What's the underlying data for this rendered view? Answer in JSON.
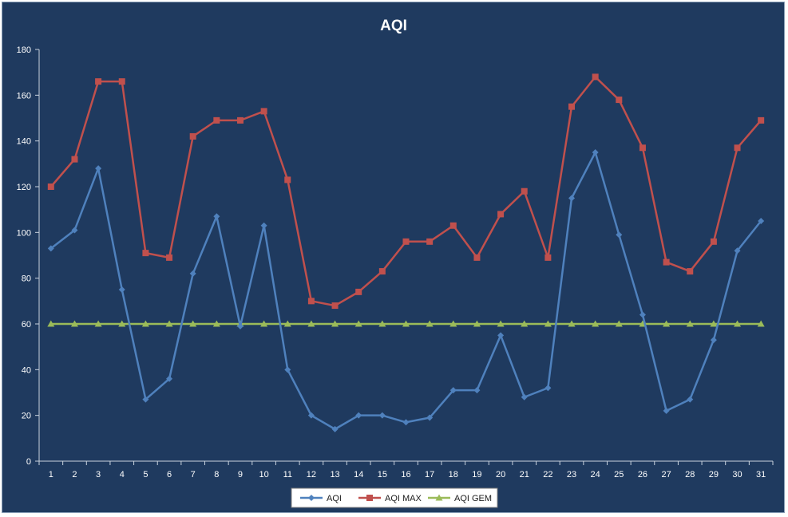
{
  "chart_data": {
    "type": "line",
    "title": "AQI",
    "xlabel": "",
    "ylabel": "",
    "ylim": [
      0,
      180
    ],
    "y_ticks": [
      0,
      20,
      40,
      60,
      80,
      100,
      120,
      140,
      160,
      180
    ],
    "categories": [
      "1",
      "2",
      "3",
      "4",
      "5",
      "6",
      "7",
      "8",
      "9",
      "10",
      "11",
      "12",
      "13",
      "14",
      "15",
      "16",
      "17",
      "18",
      "19",
      "20",
      "21",
      "22",
      "23",
      "24",
      "25",
      "26",
      "27",
      "28",
      "29",
      "30",
      "31"
    ],
    "grid": false,
    "legend_position": "bottom",
    "series": [
      {
        "name": "AQI",
        "color": "#4f81bd",
        "marker": "diamond",
        "values": [
          93,
          101,
          128,
          75,
          27,
          36,
          82,
          107,
          59,
          103,
          40,
          20,
          14,
          20,
          20,
          17,
          19,
          31,
          31,
          55,
          28,
          32,
          115,
          135,
          99,
          64,
          22,
          27,
          53,
          92,
          105
        ]
      },
      {
        "name": "AQI MAX",
        "color": "#c0504d",
        "marker": "square",
        "values": [
          120,
          132,
          166,
          166,
          91,
          89,
          142,
          149,
          149,
          153,
          123,
          70,
          68,
          74,
          83,
          96,
          96,
          103,
          89,
          108,
          118,
          89,
          155,
          168,
          158,
          137,
          87,
          83,
          96,
          137,
          149
        ]
      },
      {
        "name": "AQI GEM",
        "color": "#9bbb59",
        "marker": "triangle",
        "values": [
          60,
          60,
          60,
          60,
          60,
          60,
          60,
          60,
          60,
          60,
          60,
          60,
          60,
          60,
          60,
          60,
          60,
          60,
          60,
          60,
          60,
          60,
          60,
          60,
          60,
          60,
          60,
          60,
          60,
          60,
          60
        ]
      }
    ]
  }
}
